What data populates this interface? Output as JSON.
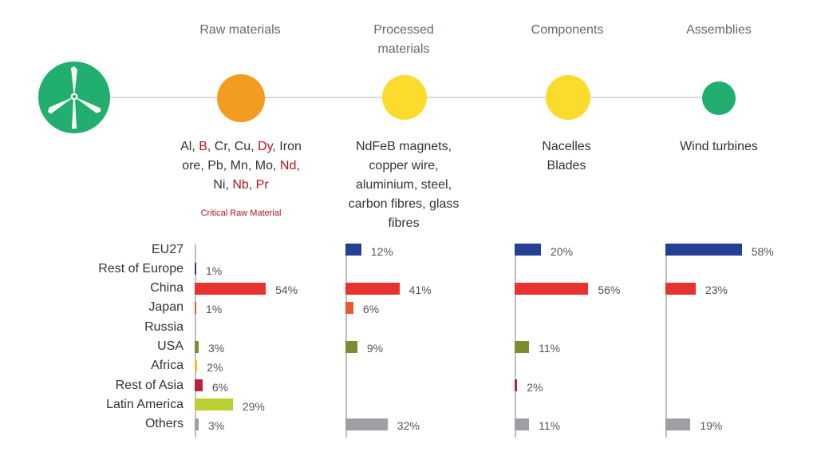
{
  "stages": [
    {
      "title": "Raw materials",
      "color": "#f39c1f"
    },
    {
      "title": "Processed materials",
      "color": "#fbdc2c"
    },
    {
      "title": "Components",
      "color": "#fbdc2c"
    },
    {
      "title": "Assemblies",
      "color": "#22ae6e"
    }
  ],
  "turbine_icon": {
    "name": "wind-turbine-icon",
    "color": "#22ae6e"
  },
  "descriptions": {
    "raw_materials": {
      "line1": [
        {
          "t": "Al, ",
          "crm": false
        },
        {
          "t": "B",
          "crm": true
        },
        {
          "t": ", Cr, Cu, ",
          "crm": false
        },
        {
          "t": "Dy",
          "crm": true
        },
        {
          "t": ", Iron",
          "crm": false
        }
      ],
      "line2": [
        {
          "t": "ore, Pb, Mn, Mo, ",
          "crm": false
        },
        {
          "t": "Nd",
          "crm": true
        },
        {
          "t": ",",
          "crm": false
        }
      ],
      "line3": [
        {
          "t": "Ni, ",
          "crm": false
        },
        {
          "t": "Nb",
          "crm": true
        },
        {
          "t": ", ",
          "crm": false
        },
        {
          "t": "Pr",
          "crm": true
        }
      ],
      "note": "Critical Raw Material"
    },
    "processed_materials": {
      "lines": [
        "NdFeB magnets,",
        "copper wire,",
        "aluminium, steel,",
        "carbon fibres, glass",
        "fibres"
      ]
    },
    "components": {
      "lines": [
        "Nacelles",
        "Blades"
      ]
    },
    "assemblies": {
      "lines": [
        "Wind turbines"
      ]
    }
  },
  "chart_data": {
    "type": "bar",
    "orientation": "horizontal",
    "categories": [
      "EU27",
      "Rest of Europe",
      "China",
      "Japan",
      "Russia",
      "USA",
      "Africa",
      "Rest of Asia",
      "Latin America",
      "Others"
    ],
    "category_colors": [
      "#253f94",
      "#253f94",
      "#e8322f",
      "#e95a2b",
      "#e95a2b",
      "#7d8c30",
      "#f4c12b",
      "#b5243c",
      "#b9d030",
      "#9d9fa3"
    ],
    "value_unit": "%",
    "series": [
      {
        "name": "Raw materials",
        "values": [
          null,
          1,
          54,
          1,
          null,
          3,
          2,
          6,
          29,
          3
        ]
      },
      {
        "name": "Processed materials",
        "values": [
          12,
          null,
          41,
          6,
          null,
          9,
          null,
          null,
          null,
          32
        ]
      },
      {
        "name": "Components",
        "values": [
          20,
          null,
          56,
          null,
          null,
          11,
          null,
          2,
          null,
          11
        ]
      },
      {
        "name": "Assemblies",
        "values": [
          58,
          null,
          23,
          null,
          null,
          null,
          null,
          null,
          null,
          19
        ]
      }
    ]
  }
}
